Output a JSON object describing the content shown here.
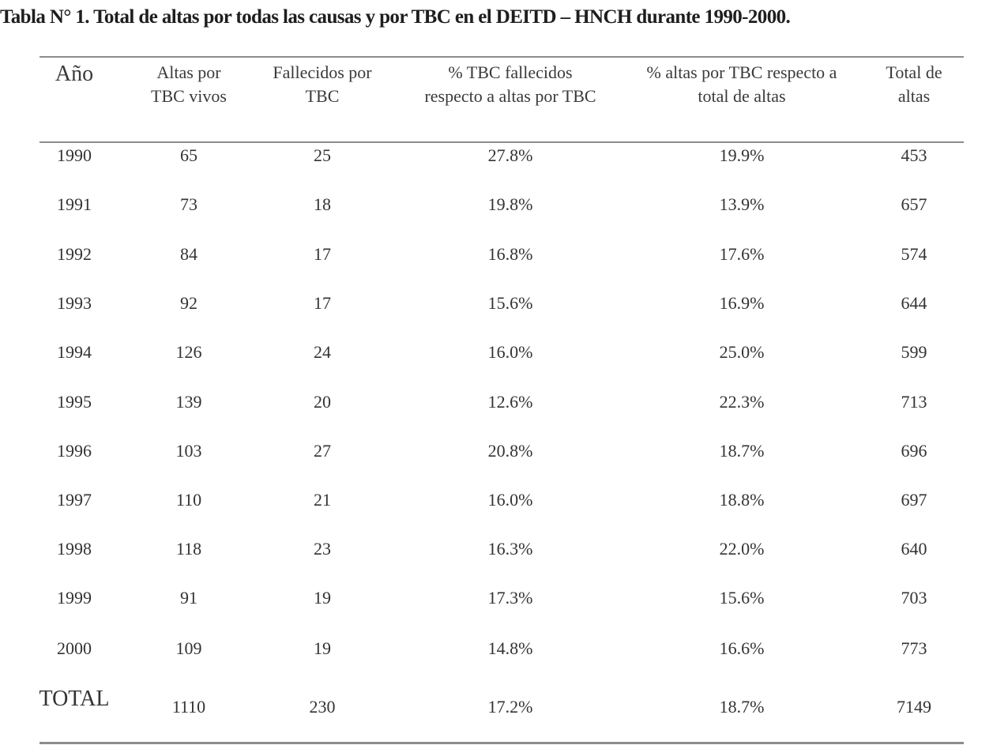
{
  "title": "Tabla N° 1. Total de altas por todas las causas y por TBC en el  DEITD – HNCH durante 1990-2000.",
  "headers": {
    "year": "Año",
    "altas_vivos": [
      "Altas por",
      "TBC vivos"
    ],
    "fallecidos": [
      "Fallecidos por",
      "TBC"
    ],
    "pct_fallecidos": [
      "% TBC fallecidos",
      "respecto a altas por TBC"
    ],
    "pct_altas": [
      "% altas por TBC respecto a",
      "total de altas"
    ],
    "total_altas": [
      "Total de",
      "altas"
    ]
  },
  "rows": [
    [
      "1990",
      "65",
      "25",
      "27.8%",
      "19.9%",
      "453"
    ],
    [
      "1991",
      "73",
      "18",
      "19.8%",
      "13.9%",
      "657"
    ],
    [
      "1992",
      "84",
      "17",
      "16.8%",
      "17.6%",
      "574"
    ],
    [
      "1993",
      "92",
      "17",
      "15.6%",
      "16.9%",
      "644"
    ],
    [
      "1994",
      "126",
      "24",
      "16.0%",
      "25.0%",
      "599"
    ],
    [
      "1995",
      "139",
      "20",
      "12.6%",
      "22.3%",
      "713"
    ],
    [
      "1996",
      "103",
      "27",
      "20.8%",
      "18.7%",
      "696"
    ],
    [
      "1997",
      "110",
      "21",
      "16.0%",
      "18.8%",
      "697"
    ],
    [
      "1998",
      "118",
      "23",
      "16.3%",
      "22.0%",
      "640"
    ],
    [
      "1999",
      "91",
      "19",
      "17.3%",
      "15.6%",
      "703"
    ],
    [
      "2000",
      "109",
      "19",
      "14.8%",
      "16.6%",
      "773"
    ]
  ],
  "total_row": [
    "TOTAL",
    "1110",
    "230",
    "17.2%",
    "18.7%",
    "7149"
  ]
}
